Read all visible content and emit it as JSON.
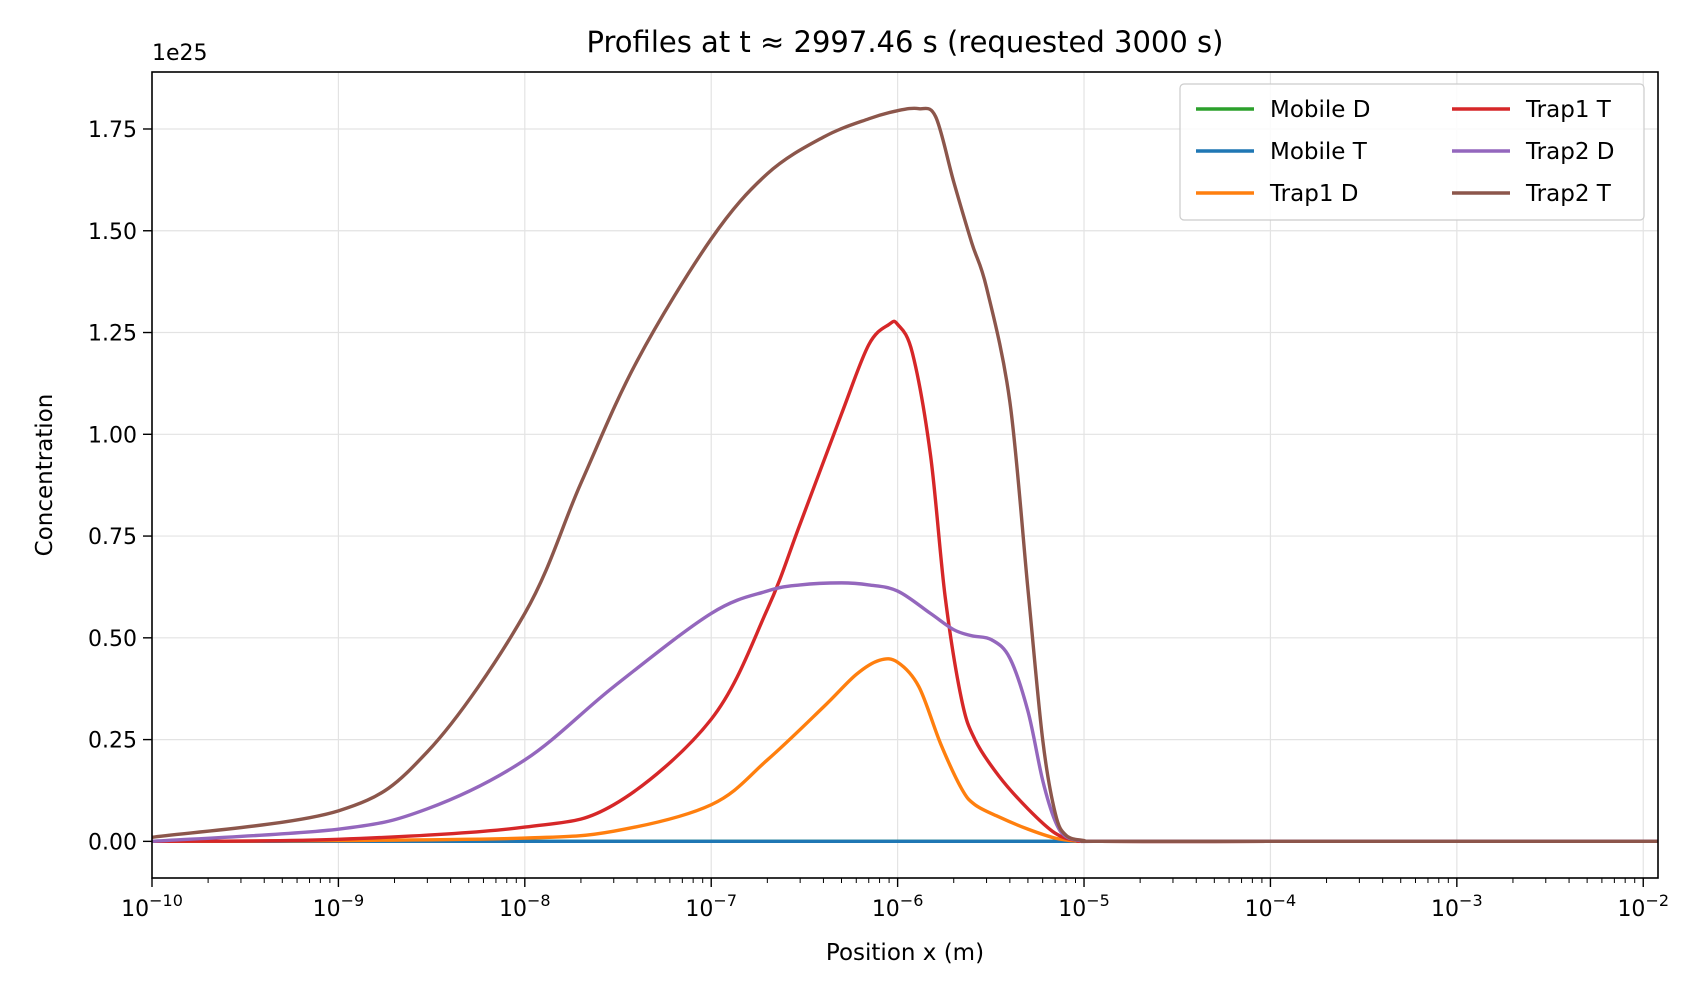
{
  "chart_data": {
    "type": "line",
    "title": "Profiles at t ≈ 2997.46 s (requested 3000 s)",
    "xlabel": "Position x (m)",
    "ylabel": "Concentration",
    "y_offset_label": "1e25",
    "x_scale": "log",
    "xlim": [
      1e-10,
      0.012
    ],
    "ylim": [
      -0.09,
      1.89
    ],
    "grid": true,
    "legend_position": "top-right",
    "legend_columns": 2,
    "x_ticks": [
      {
        "value": 1e-10,
        "base": "10",
        "exp": "−10"
      },
      {
        "value": 1e-09,
        "base": "10",
        "exp": "−9"
      },
      {
        "value": 1e-08,
        "base": "10",
        "exp": "−8"
      },
      {
        "value": 1e-07,
        "base": "10",
        "exp": "−7"
      },
      {
        "value": 1e-06,
        "base": "10",
        "exp": "−6"
      },
      {
        "value": 1e-05,
        "base": "10",
        "exp": "−5"
      },
      {
        "value": 0.0001,
        "base": "10",
        "exp": "−4"
      },
      {
        "value": 0.001,
        "base": "10",
        "exp": "−3"
      },
      {
        "value": 0.01,
        "base": "10",
        "exp": "−2"
      }
    ],
    "y_ticks": [
      {
        "value": 0.0,
        "label": "0.00"
      },
      {
        "value": 0.25,
        "label": "0.25"
      },
      {
        "value": 0.5,
        "label": "0.50"
      },
      {
        "value": 0.75,
        "label": "0.75"
      },
      {
        "value": 1.0,
        "label": "1.00"
      },
      {
        "value": 1.25,
        "label": "1.25"
      },
      {
        "value": 1.5,
        "label": "1.50"
      },
      {
        "value": 1.75,
        "label": "1.75"
      }
    ],
    "series": [
      {
        "name": "Mobile D",
        "color": "#2ca02c",
        "x": [
          1e-10,
          1e-05,
          0.012
        ],
        "y": [
          0.0,
          0.0,
          0.0
        ]
      },
      {
        "name": "Mobile T",
        "color": "#1f77b4",
        "x": [
          1e-10,
          1e-05,
          0.012
        ],
        "y": [
          0.0,
          0.0,
          0.0
        ]
      },
      {
        "name": "Trap1 D",
        "color": "#ff7f0e",
        "x": [
          1e-10,
          1e-09,
          1e-08,
          3e-08,
          1e-07,
          2e-07,
          4e-07,
          6e-07,
          8e-07,
          1e-06,
          1.3e-06,
          1.7e-06,
          2.2e-06,
          2.6e-06,
          3.5e-06,
          5e-06,
          7e-06,
          9e-06,
          1.2e-05,
          0.0001,
          0.001,
          0.012
        ],
        "y": [
          0.0,
          0.002,
          0.008,
          0.025,
          0.09,
          0.2,
          0.33,
          0.41,
          0.445,
          0.44,
          0.38,
          0.24,
          0.13,
          0.09,
          0.06,
          0.03,
          0.008,
          0.001,
          0.0,
          0.0,
          0.0,
          0.0
        ]
      },
      {
        "name": "Trap1 T",
        "color": "#d62728",
        "x": [
          1e-10,
          1e-09,
          1e-08,
          3e-08,
          1e-07,
          2e-07,
          3e-07,
          5e-07,
          7e-07,
          9e-07,
          1e-06,
          1.2e-06,
          1.5e-06,
          1.8e-06,
          2.2e-06,
          2.6e-06,
          3.5e-06,
          5e-06,
          7e-06,
          9e-06,
          1.2e-05,
          0.0001,
          0.001,
          0.012
        ],
        "y": [
          0.0,
          0.005,
          0.035,
          0.09,
          0.3,
          0.57,
          0.78,
          1.05,
          1.22,
          1.27,
          1.27,
          1.2,
          0.95,
          0.6,
          0.35,
          0.25,
          0.16,
          0.08,
          0.02,
          0.003,
          0.0,
          0.0,
          0.0,
          0.0
        ]
      },
      {
        "name": "Trap2 D",
        "color": "#9467bd",
        "x": [
          1e-10,
          1e-09,
          3e-09,
          1e-08,
          3e-08,
          1e-07,
          2e-07,
          3e-07,
          5e-07,
          7e-07,
          1e-06,
          1.5e-06,
          2e-06,
          2.5e-06,
          3.2e-06,
          4e-06,
          5e-06,
          6e-06,
          7e-06,
          8e-06,
          1e-05,
          1.2e-05,
          0.0001,
          0.001,
          0.012
        ],
        "y": [
          0.0,
          0.03,
          0.08,
          0.2,
          0.38,
          0.56,
          0.615,
          0.63,
          0.635,
          0.63,
          0.615,
          0.56,
          0.52,
          0.505,
          0.495,
          0.45,
          0.32,
          0.15,
          0.05,
          0.012,
          0.001,
          0.0,
          0.0,
          0.0,
          0.0
        ]
      },
      {
        "name": "Trap2 T",
        "color": "#8c564b",
        "x": [
          1e-10,
          1e-09,
          3e-09,
          1e-08,
          2e-08,
          4e-08,
          1e-07,
          2e-07,
          4e-07,
          7e-07,
          1e-06,
          1.3e-06,
          1.6e-06,
          2e-06,
          2.5e-06,
          3e-06,
          4e-06,
          5e-06,
          6e-06,
          7e-06,
          8e-06,
          1e-05,
          1.2e-05,
          0.0001,
          0.001,
          0.012
        ],
        "y": [
          0.01,
          0.075,
          0.22,
          0.56,
          0.88,
          1.18,
          1.48,
          1.64,
          1.73,
          1.775,
          1.795,
          1.8,
          1.78,
          1.62,
          1.47,
          1.36,
          1.08,
          0.62,
          0.25,
          0.07,
          0.015,
          0.002,
          0.0,
          0.0,
          0.0,
          0.0
        ]
      }
    ]
  }
}
